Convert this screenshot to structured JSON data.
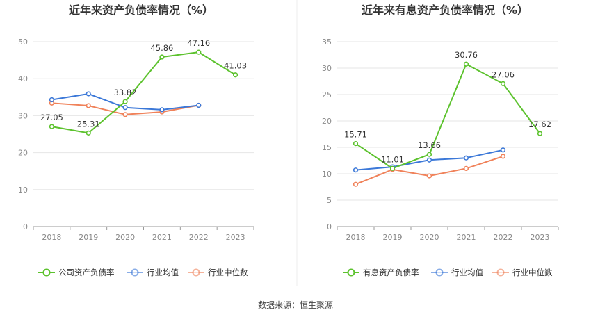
{
  "chart_data": [
    {
      "type": "line",
      "title": "近年来资产负债率情况（%）",
      "categories": [
        "2018",
        "2019",
        "2020",
        "2021",
        "2022",
        "2023"
      ],
      "ylim": [
        0,
        50
      ],
      "yticks": [
        0,
        10,
        20,
        30,
        40,
        50
      ],
      "grid": true,
      "legend_position": "bottom",
      "series": [
        {
          "name": "公司资产负债率",
          "color": "#5cc22d",
          "values": [
            27.05,
            25.31,
            33.82,
            45.86,
            47.16,
            41.03
          ],
          "labels": [
            "27.05",
            "25.31",
            "33.82",
            "45.86",
            "47.16",
            "41.03"
          ]
        },
        {
          "name": "行业均值",
          "color": "#3b78d8",
          "values": [
            34.3,
            35.9,
            32.2,
            31.6,
            32.8,
            null
          ]
        },
        {
          "name": "行业中位数",
          "color": "#f0825a",
          "values": [
            33.4,
            32.7,
            30.3,
            31.0,
            32.8,
            null
          ]
        }
      ]
    },
    {
      "type": "line",
      "title": "近年来有息资产负债率情况（%）",
      "categories": [
        "2018",
        "2019",
        "2020",
        "2021",
        "2022",
        "2023"
      ],
      "ylim": [
        0,
        35
      ],
      "yticks": [
        0,
        5,
        10,
        15,
        20,
        25,
        30,
        35
      ],
      "grid": true,
      "legend_position": "bottom",
      "series": [
        {
          "name": "有息资产负债率",
          "color": "#5cc22d",
          "values": [
            15.71,
            11.01,
            13.66,
            30.76,
            27.06,
            17.62
          ],
          "labels": [
            "15.71",
            "11.01",
            "13.66",
            "30.76",
            "27.06",
            "17.62"
          ]
        },
        {
          "name": "行业均值",
          "color": "#3b78d8",
          "values": [
            10.7,
            11.3,
            12.6,
            13.0,
            14.5,
            null
          ]
        },
        {
          "name": "行业中位数",
          "color": "#f0825a",
          "values": [
            8.0,
            10.8,
            9.6,
            11.0,
            13.3,
            null
          ]
        }
      ]
    }
  ],
  "footer": {
    "source": "数据来源：恒生聚源"
  }
}
